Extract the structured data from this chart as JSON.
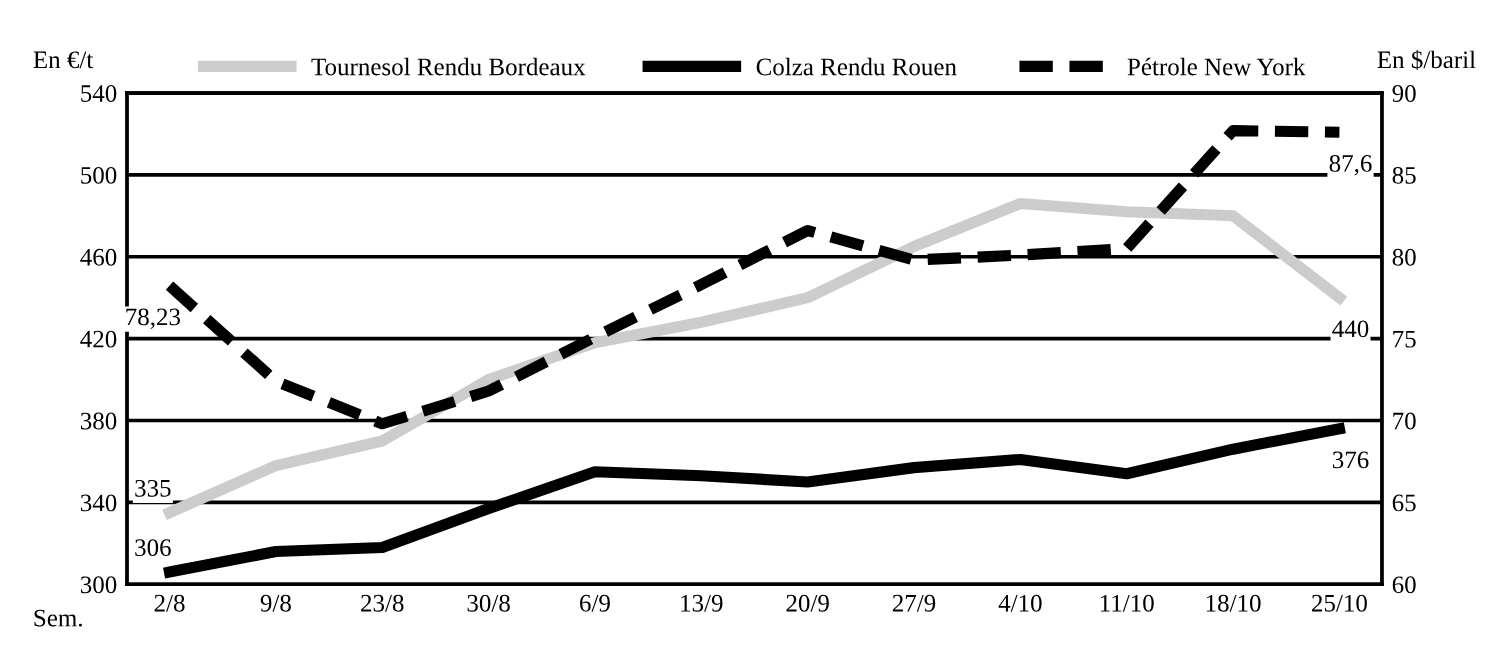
{
  "chart_data": {
    "type": "line",
    "xlabel": "Sem.",
    "ylabel": "En €/t",
    "y2label": "En $/baril",
    "categories": [
      "2/8",
      "9/8",
      "23/8",
      "30/8",
      "6/9",
      "13/9",
      "20/9",
      "27/9",
      "4/10",
      "11/10",
      "18/10",
      "25/10"
    ],
    "series": [
      {
        "name": "Tournesol Rendu Bordeaux",
        "color": "#cccccc",
        "line_style": "solid",
        "values": [
          335,
          358,
          370,
          400,
          418,
          428,
          440,
          465,
          486,
          482,
          480,
          440
        ],
        "value_labels": [
          "335",
          null,
          null,
          null,
          null,
          null,
          null,
          null,
          null,
          null,
          null,
          "440"
        ]
      },
      {
        "name": "Colza Rendu Rouen",
        "color": "#000000",
        "line_style": "solid",
        "values": [
          306,
          316,
          318,
          337,
          355,
          353,
          350,
          357,
          361,
          354,
          366,
          376
        ],
        "value_labels": [
          "306",
          null,
          null,
          null,
          null,
          null,
          null,
          null,
          null,
          null,
          null,
          "376"
        ]
      },
      {
        "name": "Pétrole New York",
        "color": "#000000",
        "line_style": "dashed",
        "axis": "y2",
        "values": [
          78.23,
          72.4,
          69.8,
          71.8,
          75.1,
          78.3,
          81.6,
          79.8,
          80.1,
          80.5,
          87.7,
          87.6
        ],
        "value_labels": [
          "78,23",
          null,
          null,
          null,
          null,
          null,
          null,
          null,
          null,
          null,
          null,
          "87,6"
        ]
      }
    ],
    "ylim": [
      300,
      540
    ],
    "yticks": [
      300,
      340,
      380,
      420,
      460,
      500,
      540
    ],
    "y2lim": [
      60,
      90
    ],
    "y2ticks": [
      60,
      65,
      70,
      75,
      80,
      85,
      90
    ],
    "grid": "y",
    "legend": "top",
    "marker": "none"
  }
}
